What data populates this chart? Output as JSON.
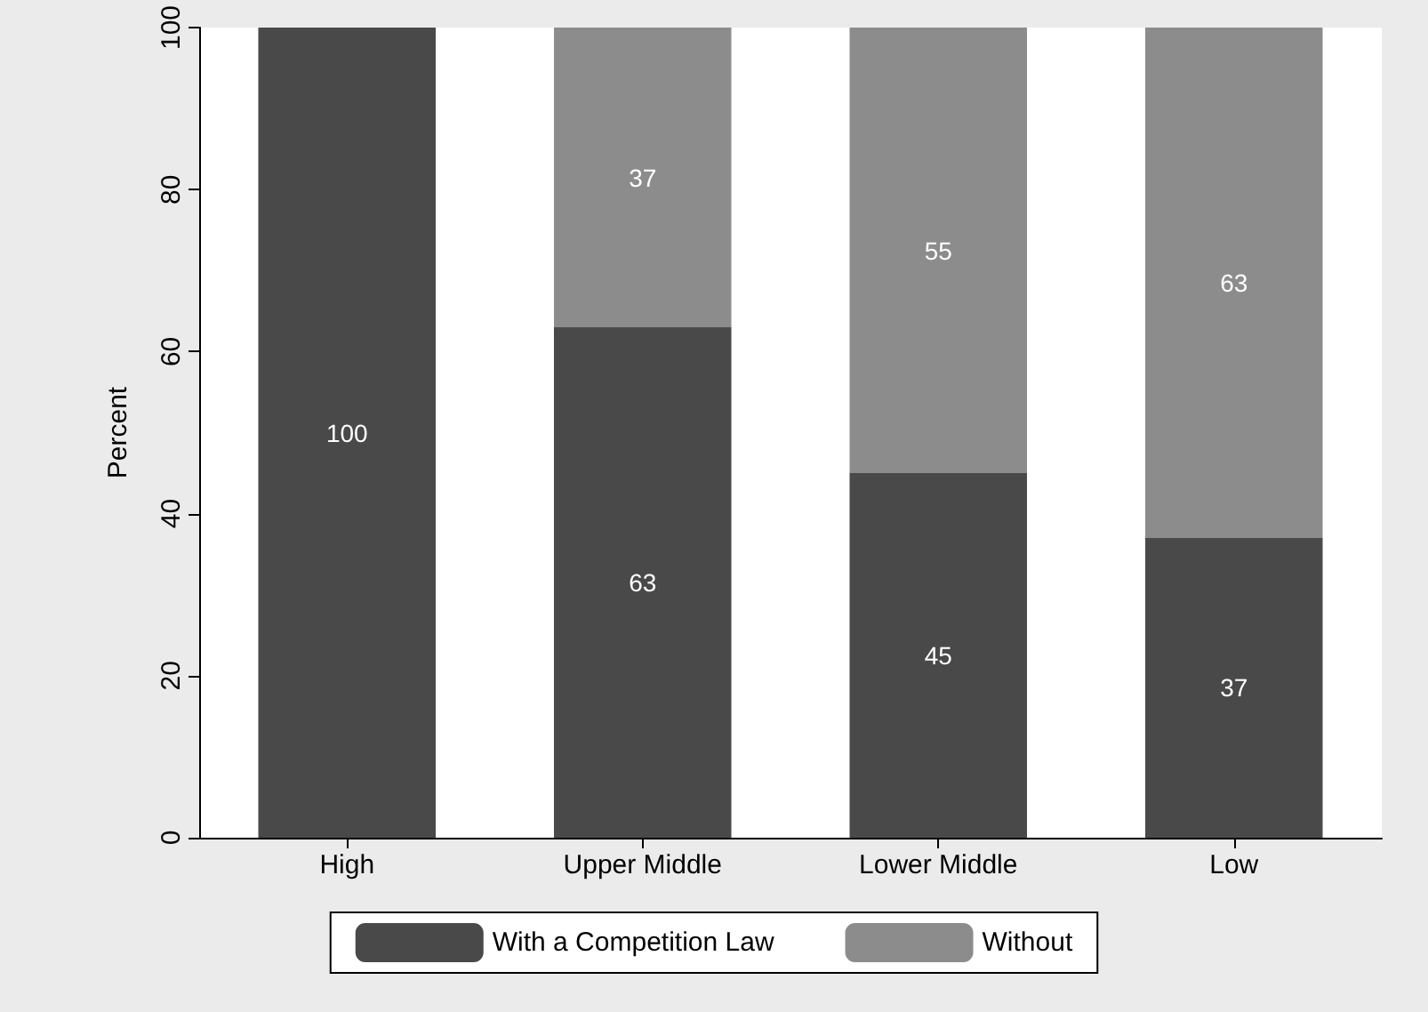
{
  "chart_data": {
    "type": "bar",
    "stacked": true,
    "ylabel": "Percent",
    "categories": [
      "High",
      "Upper Middle",
      "Lower Middle",
      "Low"
    ],
    "series": [
      {
        "name": "With a Competition Law",
        "color": "#494949",
        "values": [
          100,
          63,
          45,
          37
        ],
        "value_labels": [
          "100",
          "63",
          "45",
          "37"
        ]
      },
      {
        "name": "Without",
        "color": "#8c8c8c",
        "values": [
          0,
          37,
          55,
          63
        ],
        "value_labels": [
          null,
          "37",
          "55",
          "63"
        ]
      }
    ],
    "ylim": [
      0,
      100
    ],
    "yticks": [
      0,
      20,
      40,
      60,
      80,
      100
    ],
    "grid": false,
    "legend": "bottom"
  }
}
